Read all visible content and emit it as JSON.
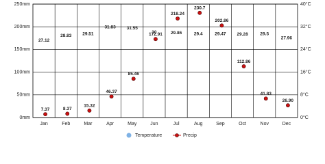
{
  "chart_data": {
    "type": "climate",
    "categories": [
      "Jan",
      "Feb",
      "Mar",
      "Apr",
      "May",
      "Jun",
      "Jul",
      "Aug",
      "Sep",
      "Oct",
      "Nov",
      "Dec"
    ],
    "series": [
      {
        "name": "Temperature",
        "color": "#7fb2e5",
        "axis": "y2",
        "values": [
          27.12,
          28.83,
          29.51,
          31.83,
          31.55,
          30,
          29.86,
          29.4,
          29.47,
          29.28,
          29.5,
          27.96
        ]
      },
      {
        "name": "Precip",
        "color": "#cc1111",
        "values": [
          7.37,
          8.37,
          15.32,
          46.37,
          85.46,
          172.91,
          218.24,
          230.7,
          202.86,
          112.86,
          41.83,
          26.9
        ],
        "value_labels": [
          "7.37",
          "8.37",
          "15.32",
          "46.37",
          "85.46",
          "172.91",
          "218.24",
          "230.7",
          "202.86",
          "112.86",
          "41.83",
          "26.90"
        ]
      }
    ],
    "ylim": [
      0,
      250
    ],
    "yticks": [
      {
        "value": 0,
        "label": "0mm"
      },
      {
        "value": 50,
        "label": "50mm"
      },
      {
        "value": 100,
        "label": "100mm"
      },
      {
        "value": 150,
        "label": "150mm"
      },
      {
        "value": 200,
        "label": "200mm"
      },
      {
        "value": 250,
        "label": "250mm"
      }
    ],
    "y2lim": [
      0,
      40
    ],
    "y2ticks": [
      {
        "value": 0,
        "label": "0°C"
      },
      {
        "value": 8,
        "label": "8°C"
      },
      {
        "value": 16,
        "label": "16°C"
      },
      {
        "value": 24,
        "label": "24°C"
      },
      {
        "value": 32,
        "label": "32°C"
      },
      {
        "value": 40,
        "label": "40°C"
      }
    ],
    "grid": true
  }
}
